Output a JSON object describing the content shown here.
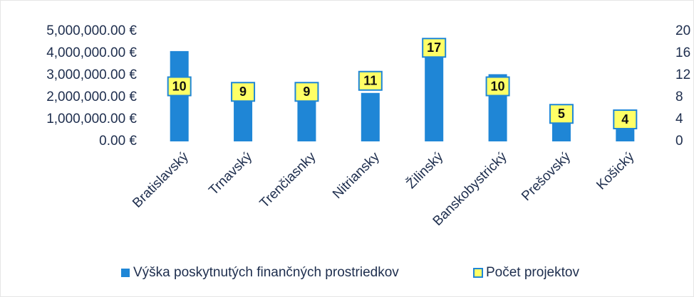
{
  "chart_data": {
    "type": "bar",
    "categories": [
      "Bratislavský",
      "Trnavský",
      "Trenčiasnky",
      "Nitriansky",
      "Žilinský",
      "Banskobystrický",
      "Prešovský",
      "Košický"
    ],
    "series": [
      {
        "name": "Výška poskytnutých finančných prostriedkov",
        "color": "#1f86d6",
        "values": [
          4100000,
          2600000,
          2600000,
          2200000,
          3900000,
          3050000,
          900000,
          600000
        ]
      },
      {
        "name": "Počet projektov",
        "color": "#ffff66",
        "axis": "y2",
        "values": [
          10,
          9,
          9,
          11,
          17,
          10,
          5,
          4
        ]
      }
    ],
    "ylim": [
      0,
      5000000
    ],
    "yticks": [
      {
        "value": 0,
        "label": "0.00 €"
      },
      {
        "value": 1000000,
        "label": "1,000,000.00 €"
      },
      {
        "value": 2000000,
        "label": "2,000,000.00 €"
      },
      {
        "value": 3000000,
        "label": "3,000,000.00 €"
      },
      {
        "value": 4000000,
        "label": "4,000,000.00 €"
      },
      {
        "value": 5000000,
        "label": "5,000,000.00 €"
      }
    ],
    "y2lim": [
      0,
      20
    ],
    "y2ticks": [
      0,
      4,
      8,
      12,
      16,
      20
    ],
    "legend": "bottom"
  }
}
